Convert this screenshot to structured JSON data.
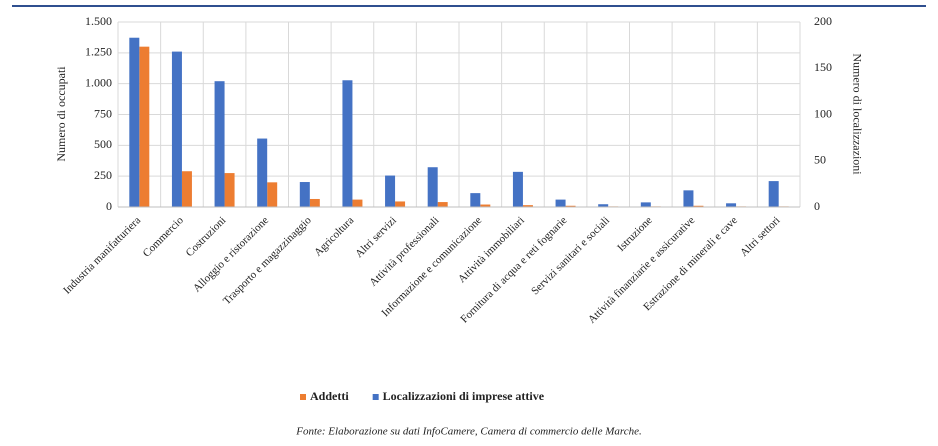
{
  "chart_data": {
    "type": "bar",
    "categories": [
      "Industria manifatturiera",
      "Commercio",
      "Costruzioni",
      "Alloggio e ristorazione",
      "Trasporto e magazzinaggio",
      "Agricoltura",
      "Altri servizi",
      "Attività professionali",
      "Informazione e comunicazione",
      "Attività immobiliari",
      "Fornitura di acqua e reti fognarie",
      "Servizi sanitari e sociali",
      "Istruzione",
      "Attività finanziarie e assicurative",
      "Estrazione di minerali e cave",
      "Altri settori"
    ],
    "series": [
      {
        "name": "Addetti",
        "color": "#ed7d31",
        "values": [
          1300,
          290,
          275,
          200,
          65,
          60,
          45,
          40,
          20,
          15,
          10,
          5,
          5,
          10,
          5,
          5
        ]
      },
      {
        "name": "Localizzazioni di imprese attive",
        "color": "#4472c4",
        "axis": "y2",
        "values": [
          183,
          168,
          136,
          74,
          27,
          137,
          34,
          43,
          15,
          38,
          8,
          3,
          5,
          18,
          4,
          28
        ]
      }
    ],
    "ylabel": "Numero di occupati",
    "y2label": "Numero di localizzazioni",
    "ylim": [
      0,
      1500
    ],
    "yticks": [
      0,
      250,
      500,
      750,
      {
        "value": 1000,
        "label": "1.000"
      },
      {
        "value": 1250,
        "label": "1.250"
      },
      {
        "value": 1500,
        "label": "1.500"
      }
    ],
    "y2lim": [
      0,
      200
    ],
    "y2ticks": [
      0,
      50,
      100,
      150,
      200
    ],
    "grid": true,
    "legend": "bottom",
    "source": "Fonte: Elaborazione su dati InfoCamere, Camera di commercio delle Marche."
  }
}
